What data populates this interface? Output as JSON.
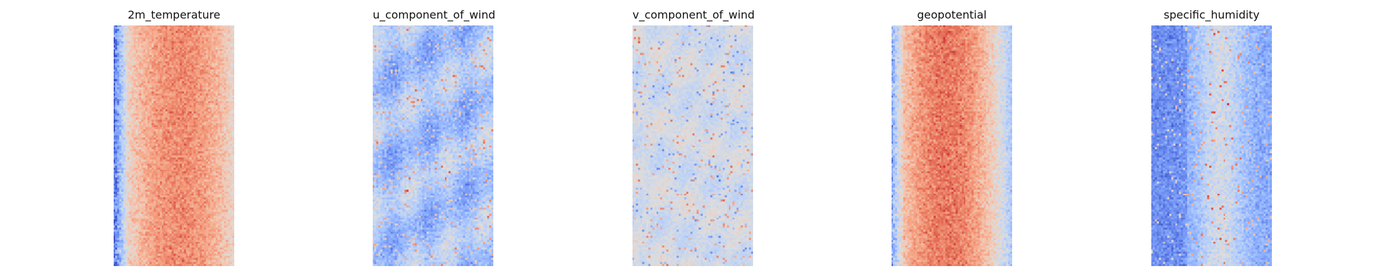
{
  "figure": {
    "colormap": "coolwarm",
    "axes_visible": false,
    "grid_resolution": [
      60,
      120
    ]
  },
  "chart_data": [
    {
      "type": "heatmap",
      "title": "2m_temperature",
      "pattern": "warm central band, bluer speckle along left edge",
      "value_range": [
        0,
        1
      ],
      "dominant_color": "#f4a582"
    },
    {
      "type": "heatmap",
      "title": "u_component_of_wind",
      "pattern": "mostly light blue with darker blue streaks and sparse red speckle",
      "value_range": [
        0,
        1
      ],
      "dominant_color": "#b5cdf8"
    },
    {
      "type": "heatmap",
      "title": "v_component_of_wind",
      "pattern": "near-neutral grey-blue with scattered red and blue eddies",
      "value_range": [
        0,
        1
      ],
      "dominant_color": "#d0d9e6"
    },
    {
      "type": "heatmap",
      "title": "geopotential",
      "pattern": "warm central band with deeper red core, lighter edges",
      "value_range": [
        0,
        1
      ],
      "dominant_color": "#f1a487"
    },
    {
      "type": "heatmap",
      "title": "specific_humidity",
      "pattern": "blue overall with lighter/red streak in middle",
      "value_range": [
        0,
        1
      ],
      "dominant_color": "#9fb9f5"
    }
  ]
}
